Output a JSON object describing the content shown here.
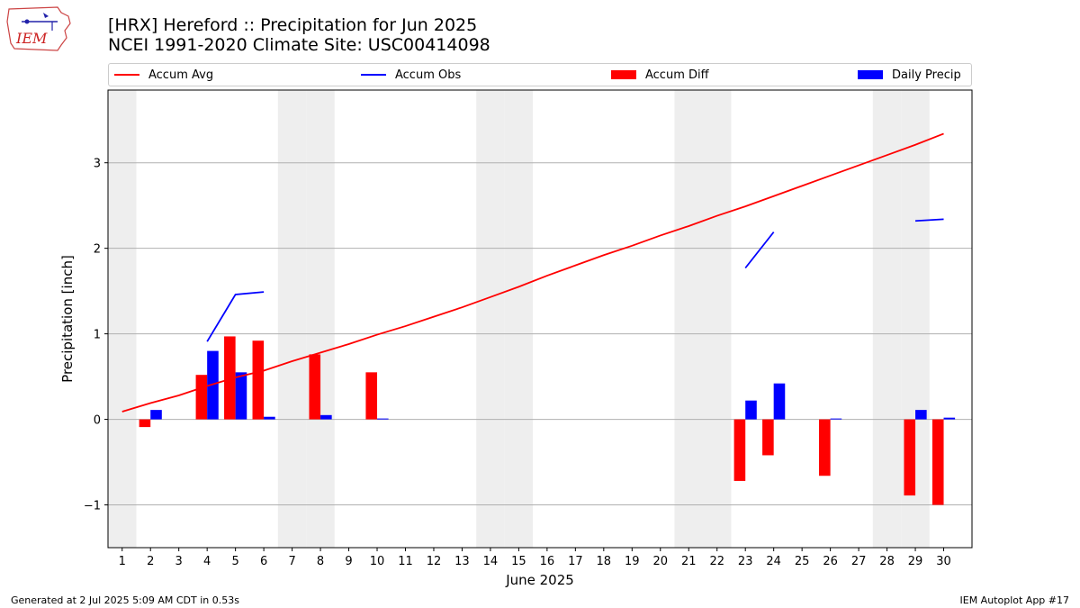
{
  "header": {
    "title_line1": "[HRX] Hereford :: Precipitation for Jun 2025",
    "title_line2": "NCEI 1991-2020 Climate Site: USC00414098",
    "logo_text": "IEM"
  },
  "legend": {
    "accum_avg": "Accum Avg",
    "accum_obs": "Accum Obs",
    "accum_diff": "Accum Diff",
    "daily_precip": "Daily Precip"
  },
  "footer": {
    "generated": "Generated at 2 Jul 2025 5:09 AM CDT in 0.53s",
    "app": "IEM Autoplot App #17"
  },
  "colors": {
    "avg": "#ff0000",
    "obs": "#0000ff",
    "diff": "#ff0000",
    "precip": "#0000ff",
    "weekend": "#eeeeee",
    "grid": "#b0b0b0"
  },
  "chart_data": {
    "type": "bar",
    "title": "[HRX] Hereford :: Precipitation for Jun 2025",
    "xlabel": "June 2025",
    "ylabel": "Precipitation [inch]",
    "xlim": [
      0.5,
      31
    ],
    "ylim": [
      -1.5,
      3.85
    ],
    "yticks": [
      -1,
      0,
      1,
      2,
      3
    ],
    "days": [
      1,
      2,
      3,
      4,
      5,
      6,
      7,
      8,
      9,
      10,
      11,
      12,
      13,
      14,
      15,
      16,
      17,
      18,
      19,
      20,
      21,
      22,
      23,
      24,
      25,
      26,
      27,
      28,
      29,
      30
    ],
    "weekend_days": [
      1,
      7,
      8,
      14,
      15,
      21,
      22,
      28,
      29
    ],
    "grid": "horizontal",
    "legend_position": "top",
    "series": [
      {
        "name": "Accum Avg",
        "kind": "line",
        "values": [
          0.09,
          0.19,
          0.28,
          0.39,
          0.49,
          0.57,
          0.68,
          0.78,
          0.88,
          0.99,
          1.09,
          1.2,
          1.31,
          1.43,
          1.55,
          1.68,
          1.8,
          1.92,
          2.03,
          2.15,
          2.26,
          2.38,
          2.49,
          2.61,
          2.73,
          2.85,
          2.97,
          3.09,
          3.21,
          3.34
        ]
      },
      {
        "name": "Accum Obs",
        "kind": "line",
        "values": [
          null,
          null,
          null,
          0.91,
          1.46,
          1.49,
          null,
          null,
          null,
          null,
          null,
          null,
          null,
          null,
          null,
          null,
          null,
          null,
          null,
          null,
          null,
          null,
          1.77,
          2.19,
          null,
          null,
          null,
          null,
          2.32,
          2.34
        ]
      },
      {
        "name": "Accum Diff",
        "kind": "bar",
        "values": [
          null,
          -0.09,
          null,
          0.52,
          0.97,
          0.92,
          null,
          0.76,
          null,
          0.55,
          null,
          null,
          null,
          null,
          null,
          null,
          null,
          null,
          null,
          null,
          null,
          null,
          -0.72,
          -0.42,
          null,
          -0.66,
          null,
          null,
          -0.89,
          -1.0
        ]
      },
      {
        "name": "Daily Precip",
        "kind": "bar",
        "values": [
          null,
          0.11,
          null,
          0.8,
          0.55,
          0.03,
          null,
          0.05,
          null,
          0.01,
          null,
          null,
          null,
          null,
          null,
          null,
          null,
          null,
          null,
          null,
          null,
          null,
          0.22,
          0.42,
          null,
          0.01,
          null,
          null,
          0.11,
          0.02
        ]
      }
    ]
  }
}
